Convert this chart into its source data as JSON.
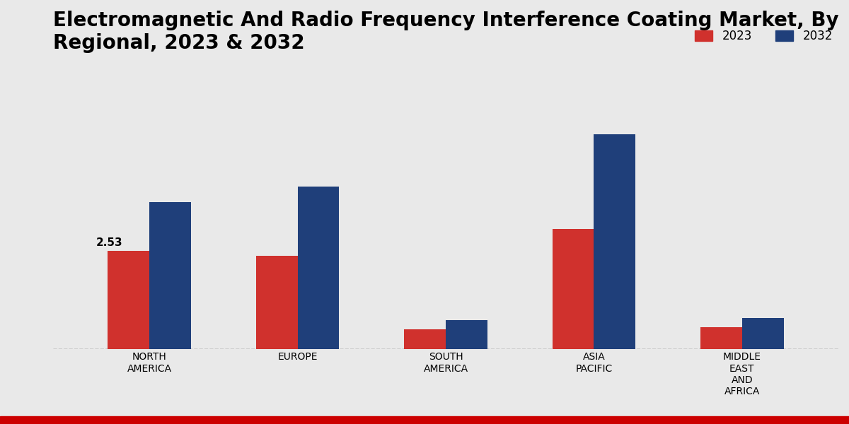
{
  "title": "Electromagnetic And Radio Frequency Interference Coating Market, By\nRegional, 2023 & 2032",
  "categories": [
    "NORTH\nAMERICA",
    "EUROPE",
    "SOUTH\nAMERICA",
    "ASIA\nPACIFIC",
    "MIDDLE\nEAST\nAND\nAFRICA"
  ],
  "values_2023": [
    2.53,
    2.4,
    0.5,
    3.1,
    0.55
  ],
  "values_2032": [
    3.8,
    4.2,
    0.75,
    5.55,
    0.8
  ],
  "color_2023": "#d0312d",
  "color_2032": "#1f3f7a",
  "bar_width": 0.28,
  "annotation_text": "2.53",
  "legend_labels": [
    "2023",
    "2032"
  ],
  "background_color": "#e8e8e8",
  "ylim_min": 0,
  "ylim_max": 7.5,
  "title_fontsize": 20,
  "axis_label_fontsize": 13,
  "tick_label_fontsize": 10,
  "legend_fontsize": 12,
  "bottom_bar_color": "#cc0000",
  "bottom_bar_height": 0.018
}
